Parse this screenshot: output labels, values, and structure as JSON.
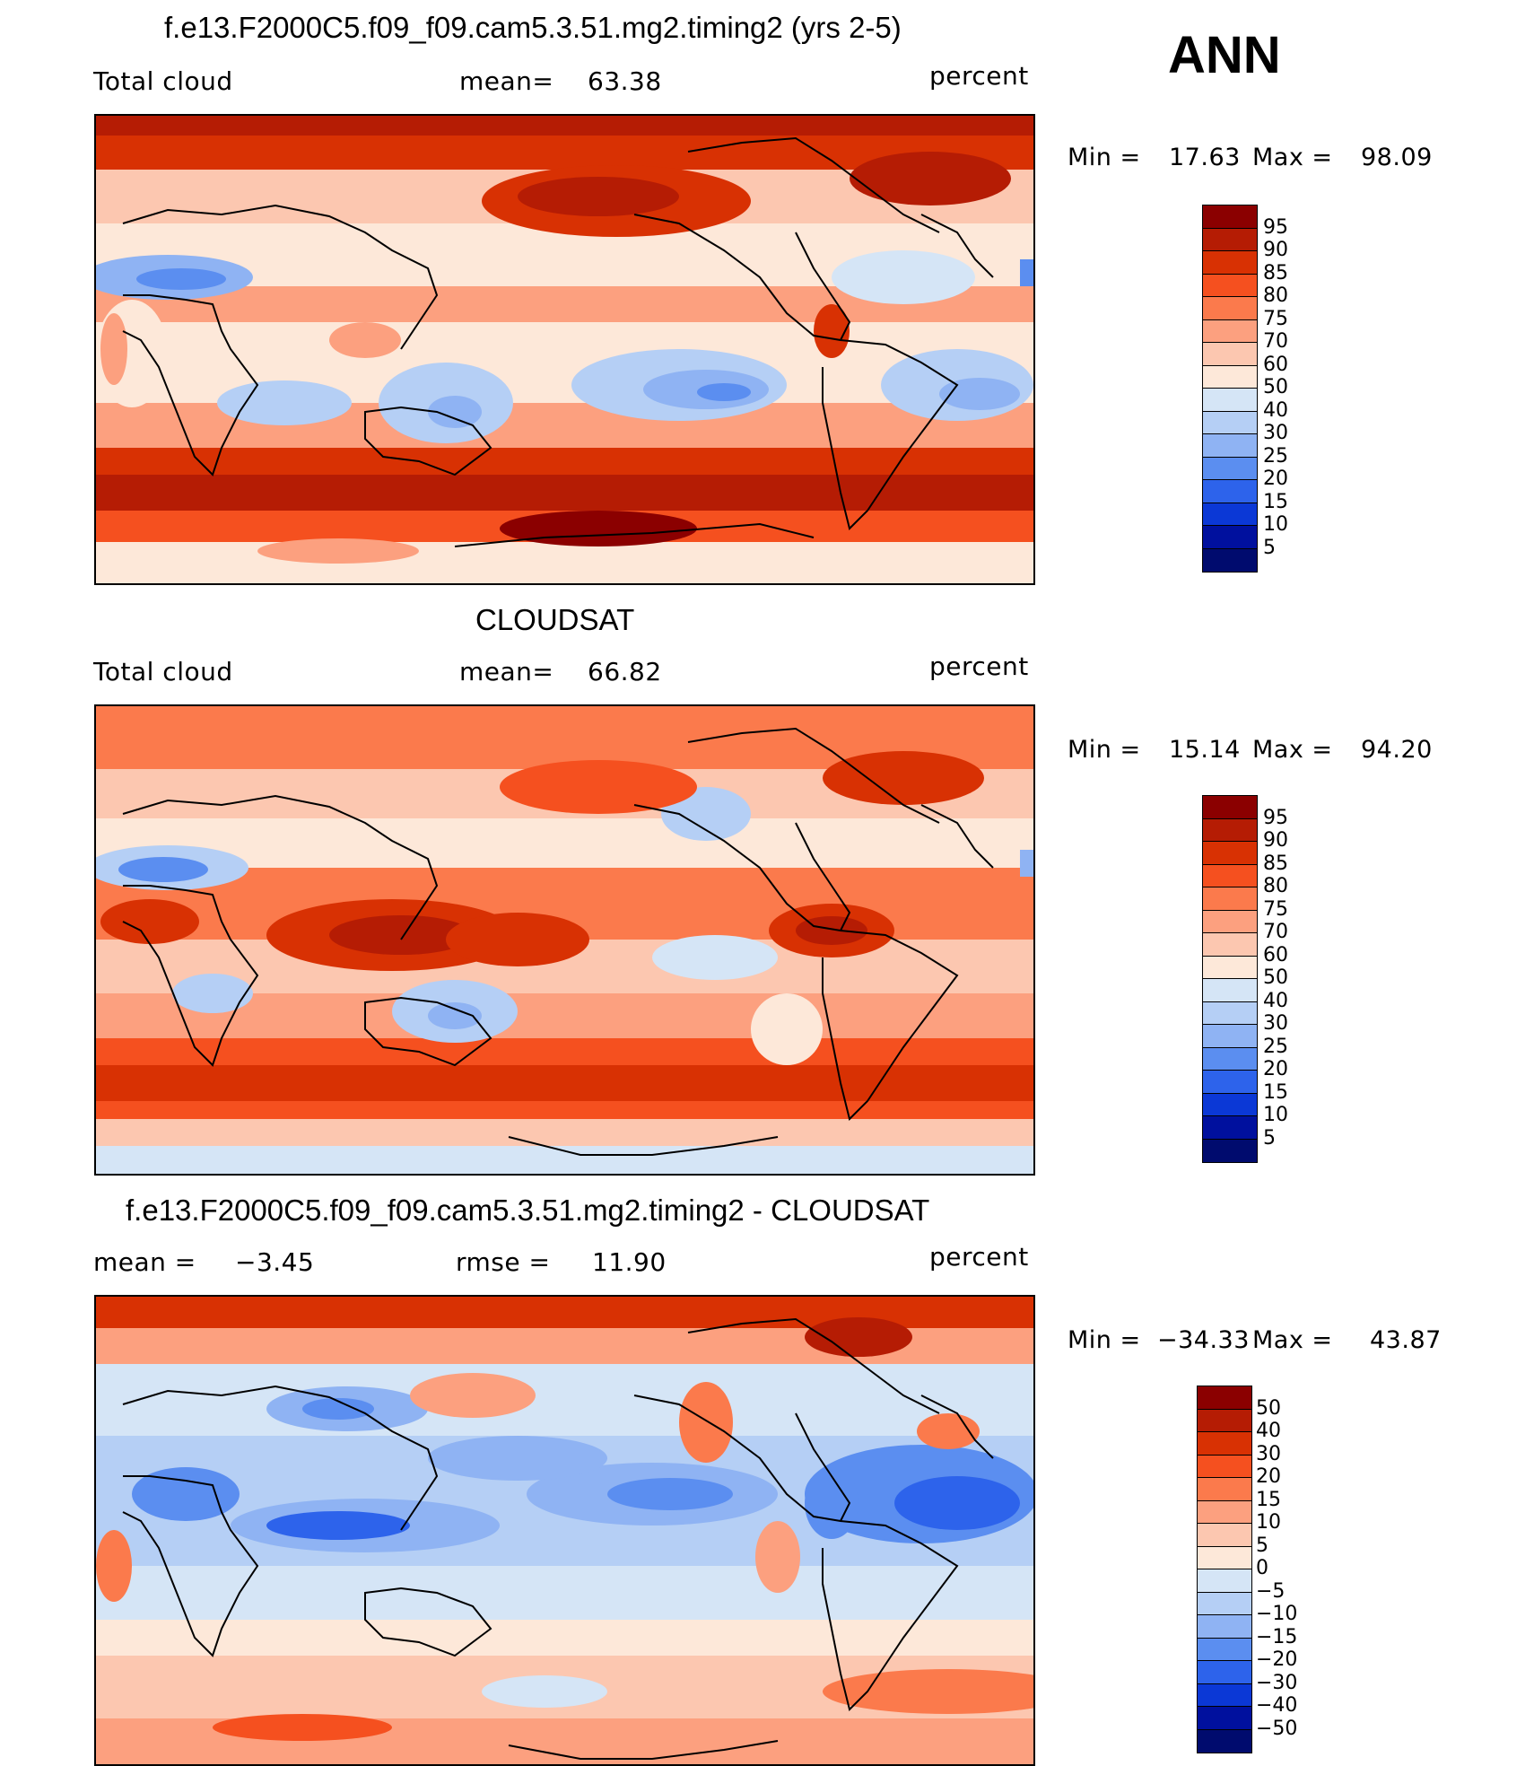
{
  "season": "ANN",
  "panels": [
    {
      "title": "f.e13.F2000C5.f09_f09.cam5.3.51.mg2.timing2 (yrs 2-5)",
      "left_label": "Total cloud",
      "center_label": "mean=",
      "center_value": "63.38",
      "units": "percent",
      "min_label": "Min =",
      "min_value": "17.63",
      "max_label": "Max =",
      "max_value": "98.09",
      "palette": "abs",
      "levels": [
        "95",
        "90",
        "85",
        "80",
        "75",
        "70",
        "60",
        "50",
        "40",
        "30",
        "25",
        "20",
        "15",
        "10",
        "5"
      ],
      "colors": [
        "#8b0000",
        "#b51c04",
        "#d83103",
        "#f5501f",
        "#fb7a4c",
        "#fca07f",
        "#fcc7b0",
        "#fde8d9",
        "#d5e5f6",
        "#b5cff5",
        "#8fb3f3",
        "#5b8ef0",
        "#2d63eb",
        "#0b38d6",
        "#00109e",
        "#000b6e"
      ]
    },
    {
      "title": "CLOUDSAT",
      "left_label": "Total cloud",
      "center_label": "mean=",
      "center_value": "66.82",
      "units": "percent",
      "min_label": "Min =",
      "min_value": "15.14",
      "max_label": "Max =",
      "max_value": "94.20",
      "palette": "abs",
      "levels": [
        "95",
        "90",
        "85",
        "80",
        "75",
        "70",
        "60",
        "50",
        "40",
        "30",
        "25",
        "20",
        "15",
        "10",
        "5"
      ],
      "colors": [
        "#8b0000",
        "#b51c04",
        "#d83103",
        "#f5501f",
        "#fb7a4c",
        "#fca07f",
        "#fcc7b0",
        "#fde8d9",
        "#d5e5f6",
        "#b5cff5",
        "#8fb3f3",
        "#5b8ef0",
        "#2d63eb",
        "#0b38d6",
        "#00109e",
        "#000b6e"
      ]
    },
    {
      "title": "f.e13.F2000C5.f09_f09.cam5.3.51.mg2.timing2 - CLOUDSAT",
      "left_label": "mean =",
      "left_value": "−3.45",
      "center_label": "rmse =",
      "center_value": "11.90",
      "units": "percent",
      "min_label": "Min =",
      "min_value": "−34.33",
      "max_label": "Max =",
      "max_value": "43.87",
      "palette": "diff",
      "levels": [
        "50",
        "40",
        "30",
        "20",
        "15",
        "10",
        "5",
        "0",
        "−5",
        "−10",
        "−15",
        "−20",
        "−30",
        "−40",
        "−50"
      ],
      "colors": [
        "#8b0000",
        "#b51c04",
        "#d83103",
        "#f5501f",
        "#fb7a4c",
        "#fca07f",
        "#fcc7b0",
        "#fde8d9",
        "#d5e5f6",
        "#b5cff5",
        "#8fb3f3",
        "#5b8ef0",
        "#2d63eb",
        "#0b38d6",
        "#00109e",
        "#000b6e"
      ]
    }
  ]
}
